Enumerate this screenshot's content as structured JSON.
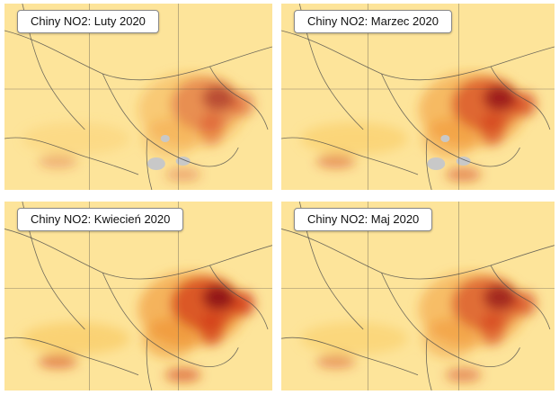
{
  "panels": [
    {
      "id": "luty",
      "title": "Chiny NO2: Luty 2020",
      "intensity": 0.55,
      "gaps": true
    },
    {
      "id": "marzec",
      "title": "Chiny NO2: Marzec 2020",
      "intensity": 0.85,
      "gaps": true
    },
    {
      "id": "kwiecien",
      "title": "Chiny NO2: Kwiecień 2020",
      "intensity": 1.0,
      "gaps": false
    },
    {
      "id": "maj",
      "title": "Chiny NO2: Maj 2020",
      "intensity": 0.8,
      "gaps": false
    }
  ],
  "colors": {
    "background": "#fde49a",
    "low": "#f7c24f",
    "mid": "#ee8a24",
    "high": "#d23a16",
    "peak": "#8c0d17",
    "no_data": "#c8c8c8",
    "borders": "#4a4a4a"
  }
}
